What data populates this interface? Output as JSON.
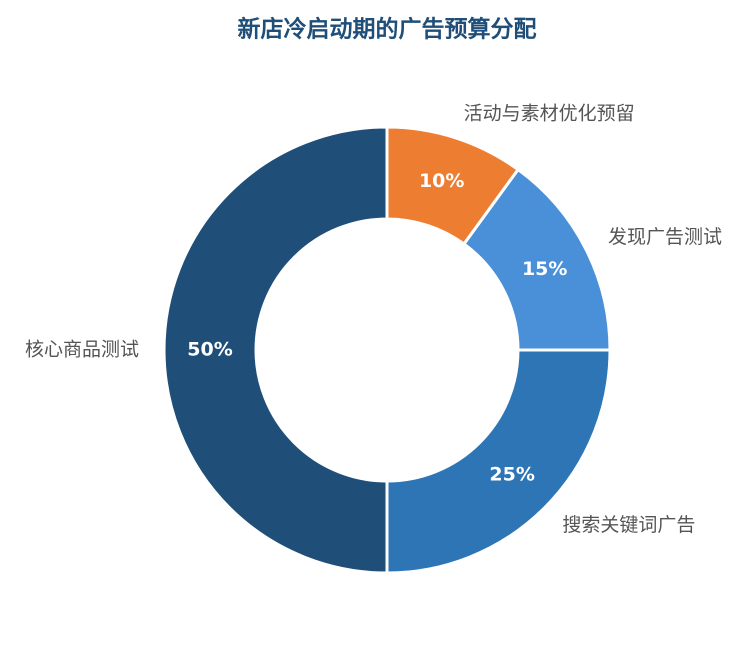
{
  "chart_data": {
    "type": "donut",
    "title": "新店冷启动期的广告预算分配",
    "categories": [
      "活动与素材优化预留",
      "发现广告测试",
      "搜索关键词广告",
      "核心商品测试"
    ],
    "values": [
      10,
      15,
      25,
      50
    ],
    "value_labels": [
      "10%",
      "15%",
      "25%",
      "50%"
    ],
    "colors": [
      "#ed7d31",
      "#4a90d9",
      "#2e75b6",
      "#1f4e79"
    ]
  }
}
